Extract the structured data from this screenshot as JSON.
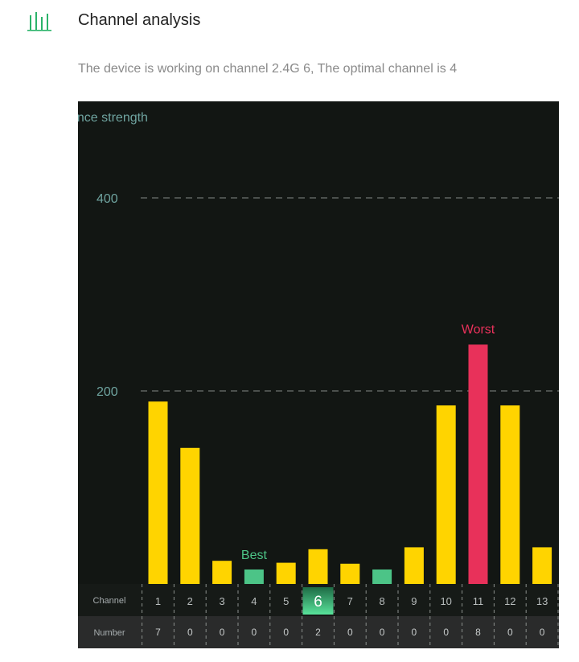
{
  "header": {
    "icon": "bar-chart-icon",
    "title": "Channel analysis",
    "subtitle": "The device is working on channel 2.4G 6, The optimal channel is 4"
  },
  "colors": {
    "accent_green": "#2bb36a",
    "bar_yellow": "#ffd400",
    "bar_best": "#4cc487",
    "bar_worst": "#e8315a",
    "panel_bg": "#121613",
    "axis_text": "#6fa4a0"
  },
  "chart_data": {
    "type": "bar",
    "ylabel": "ence strength",
    "yticks": [
      200,
      400
    ],
    "ylim": [
      0,
      400
    ],
    "categories": [
      "1",
      "2",
      "3",
      "4",
      "5",
      "6",
      "7",
      "8",
      "9",
      "10",
      "11",
      "12",
      "13"
    ],
    "values": [
      189,
      141,
      24,
      15,
      22,
      36,
      21,
      15,
      38,
      185,
      248,
      185,
      38
    ],
    "best_channel": "4",
    "best_label": "Best",
    "worst_channel": "11",
    "worst_label": "Worst",
    "current_channel": "6",
    "row_labels": {
      "channel": "Channel",
      "number": "Number"
    },
    "numbers": [
      "7",
      "0",
      "0",
      "0",
      "0",
      "2",
      "0",
      "0",
      "0",
      "0",
      "8",
      "0",
      "0"
    ]
  }
}
